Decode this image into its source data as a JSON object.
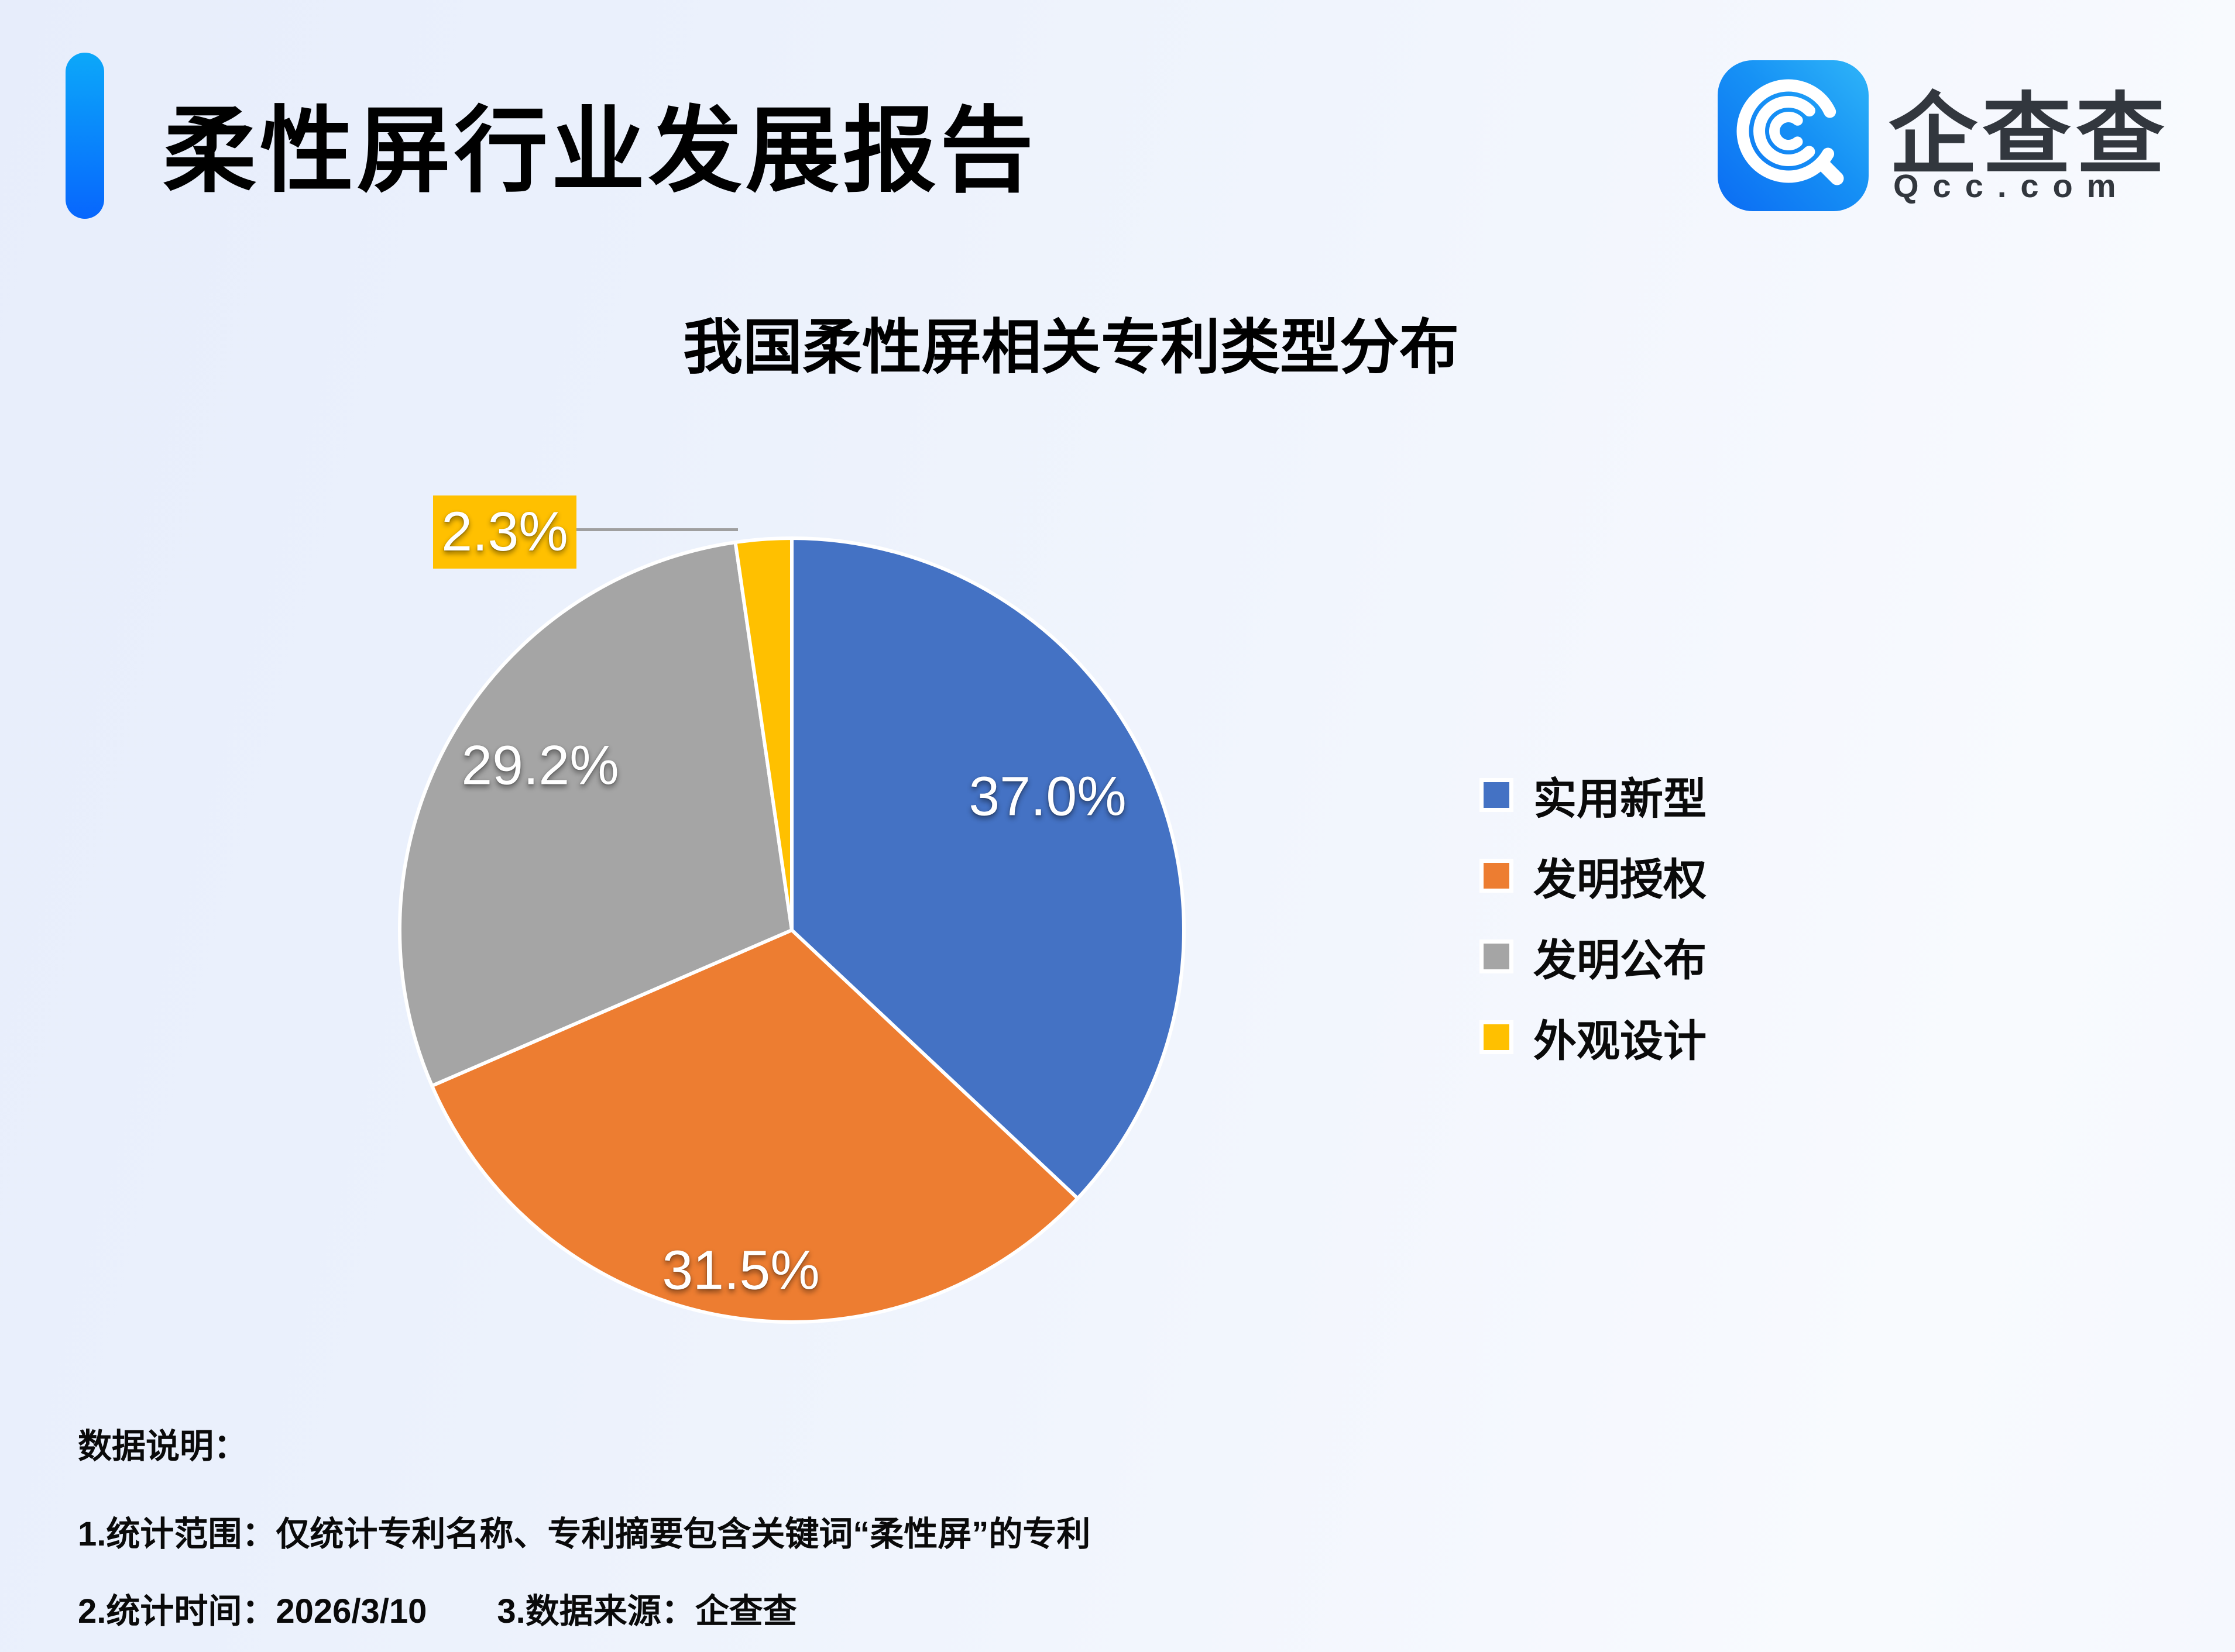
{
  "header": {
    "title": "柔性屏行业发展报告",
    "accent_color_top": "#0CA8F9",
    "accent_color_bottom": "#0766FD"
  },
  "logo": {
    "brand": "企查查",
    "domain": "Qcc.com",
    "icon": "qcc-magnifier-icon",
    "icon_gradient_start": "#0B6CF3",
    "icon_gradient_end": "#2FB5F8"
  },
  "chart_title": "我国柔性屏相关专利类型分布",
  "chart_data": {
    "type": "pie",
    "title": "我国柔性屏相关专利类型分布",
    "unit": "%",
    "start_angle_deg": 0,
    "direction": "clockwise",
    "legend_position": "right",
    "slice_border_color": "#ffffff",
    "series": [
      {
        "label": "实用新型",
        "value": 37.0,
        "display": "37.0%",
        "color": "#4472C4"
      },
      {
        "label": "发明授权",
        "value": 31.5,
        "display": "31.5%",
        "color": "#ED7D31"
      },
      {
        "label": "发明公布",
        "value": 29.2,
        "display": "29.2%",
        "color": "#A5A5A5"
      },
      {
        "label": "外观设计",
        "value": 2.3,
        "display": "2.3%",
        "color": "#FFC000"
      }
    ],
    "callout": {
      "series_index": 3,
      "display": "2.3%",
      "leader_line_color": "#9f9f9f"
    }
  },
  "footer": {
    "heading": "数据说明：",
    "note1": "1.统计范围：仅统计专利名称、专利摘要包含关键词“柔性屏”的专利",
    "note2_time": "2.统计时间：2026/3/10",
    "note2_source": "3.数据来源：企查查"
  }
}
